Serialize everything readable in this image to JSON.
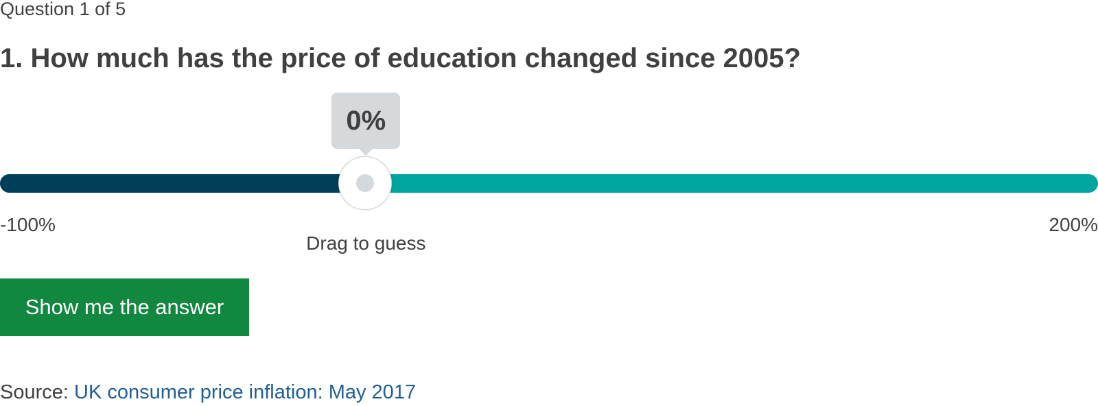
{
  "quiz": {
    "progress": "Question 1 of 5",
    "question": "1. How much has the price of education changed since 2005?"
  },
  "slider": {
    "min_label": "-100%",
    "max_label": "200%",
    "min_value": -100,
    "max_value": 200,
    "current_value": 0,
    "value_display": "0%",
    "hint": "Drag to guess",
    "colors": {
      "filled": "#003e59",
      "remaining": "#00a5a0",
      "tooltip": "#d5d9dc"
    }
  },
  "actions": {
    "show_answer_label": "Show me the answer",
    "button_color": "#12873f"
  },
  "source": {
    "prefix": "Source: ",
    "link_text": "UK consumer price inflation: May 2017",
    "link_color": "#206095"
  }
}
